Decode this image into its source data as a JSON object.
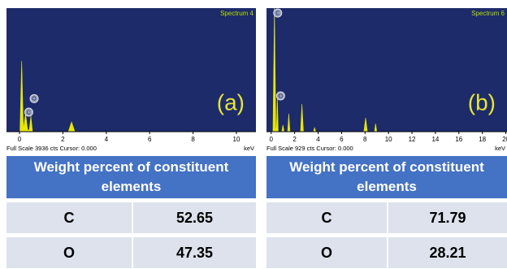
{
  "chart_data": [
    {
      "type": "area",
      "title": "Spectrum 4",
      "label": "(a)",
      "footer": "Full Scale 3936 cts Cursor: 0.000",
      "xlabel": "keV",
      "x": [
        -0.6,
        0.02,
        0.1,
        0.18,
        0.277,
        0.38,
        0.45,
        0.525,
        0.6,
        2.25,
        2.4,
        2.55,
        10.9
      ],
      "values": [
        0,
        0,
        2250,
        60,
        570,
        40,
        60,
        490,
        0,
        0,
        310,
        0,
        0
      ],
      "color": "#e8e800",
      "xlim": [
        -0.6,
        10.9
      ],
      "ylim": [
        0,
        3936
      ],
      "xticks": [
        0,
        2,
        4,
        6,
        8,
        10
      ],
      "peak_labels": [
        {
          "text": "C",
          "x": 0.277,
          "y": 570
        },
        {
          "text": "O",
          "x": 0.525,
          "y": 1000
        }
      ]
    },
    {
      "type": "area",
      "title": "Spectrum 6",
      "label": "(b)",
      "footer": "Full Scale 929 cts Cursor: 0.000",
      "xlabel": "keV",
      "x": [
        -0.4,
        0.15,
        0.277,
        0.4,
        0.45,
        0.525,
        0.6,
        0.9,
        1.0,
        1.1,
        1.4,
        1.5,
        1.6,
        2.5,
        2.62,
        2.75,
        3.6,
        3.7,
        3.8,
        7.9,
        8.05,
        8.2,
        8.8,
        8.9,
        9.0,
        20.1
      ],
      "values": [
        0,
        0,
        929,
        0,
        30,
        257,
        0,
        0,
        50,
        0,
        0,
        135,
        0,
        0,
        208,
        0,
        0,
        30,
        0,
        0,
        104,
        0,
        0,
        60,
        0,
        0
      ],
      "color": "#e8e800",
      "xlim": [
        -0.4,
        20.1
      ],
      "ylim": [
        0,
        929
      ],
      "xticks": [
        0,
        2,
        4,
        6,
        8,
        10,
        12,
        14,
        16,
        18,
        20
      ],
      "peak_labels": [
        {
          "text": "C",
          "x": 0.277,
          "y": 880
        },
        {
          "text": "O",
          "x": 0.525,
          "y": 257
        }
      ]
    }
  ],
  "tables": [
    {
      "header": "Weight percent of constituent elements",
      "rows": [
        [
          "C",
          "52.65"
        ],
        [
          "O",
          "47.35"
        ]
      ]
    },
    {
      "header": "Weight percent of constituent elements",
      "rows": [
        [
          "C",
          "71.79"
        ],
        [
          "O",
          "28.21"
        ]
      ]
    }
  ]
}
